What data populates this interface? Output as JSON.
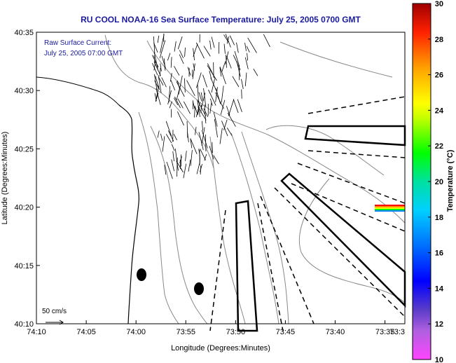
{
  "chart_data": {
    "type": "heatmap",
    "title": "RU COOL  NOAA-16  Sea Surface Temperature:  July 25, 2005 0700 GMT",
    "annotation": [
      "Raw Surface Current:",
      "July 25, 2005 07:00 GMT"
    ],
    "xlabel": "Longitude (Degrees:Minutes)",
    "ylabel": "Latitude (Degrees:Minutes)",
    "xlim": [
      -74.1667,
      -73.55
    ],
    "ylim": [
      40.1667,
      40.5833
    ],
    "x_ticks": [
      {
        "value": -74.1667,
        "label": "74:10"
      },
      {
        "value": -74.0833,
        "label": "74:05"
      },
      {
        "value": -74.0,
        "label": "74:00"
      },
      {
        "value": -73.9167,
        "label": "73:55"
      },
      {
        "value": -73.8333,
        "label": "73:50"
      },
      {
        "value": -73.75,
        "label": "73:45"
      },
      {
        "value": -73.6667,
        "label": "73:40"
      },
      {
        "value": -73.5833,
        "label": "73:35"
      },
      {
        "value": -73.55,
        "label": "73:3"
      }
    ],
    "y_ticks": [
      {
        "value": 40.1667,
        "label": "40:10"
      },
      {
        "value": 40.25,
        "label": "40:15"
      },
      {
        "value": 40.3333,
        "label": "40:20"
      },
      {
        "value": 40.4167,
        "label": "40:25"
      },
      {
        "value": 40.5,
        "label": "40:30"
      },
      {
        "value": 40.5833,
        "label": "40:35"
      }
    ],
    "colorbar": {
      "label": "Temperature (°C)",
      "range": [
        10,
        30
      ],
      "ticks": [
        10,
        12,
        14,
        16,
        18,
        20,
        22,
        24,
        26,
        28,
        30
      ]
    },
    "scale_label": "50 cm/s",
    "grid": false
  },
  "colors": {
    "title": "#1a1aa0",
    "frame": "#000000",
    "contour": "#888888",
    "coast": "#000000"
  }
}
